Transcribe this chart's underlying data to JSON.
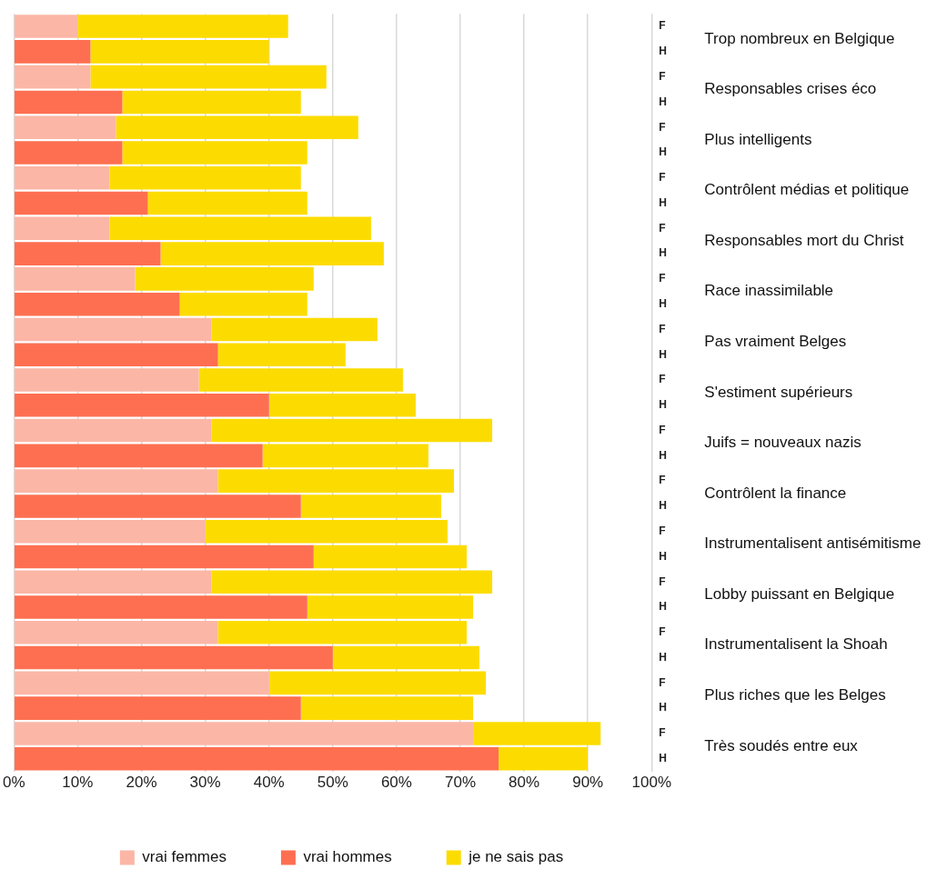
{
  "chart_data": {
    "type": "bar",
    "orientation": "horizontal",
    "stacked": true,
    "categories": [
      "F",
      "H",
      "F",
      "H",
      "F",
      "H",
      "F",
      "H",
      "F",
      "H",
      "F",
      "H",
      "F",
      "H",
      "F",
      "H",
      "F",
      "H",
      "F",
      "H",
      "F",
      "H",
      "F",
      "H",
      "F",
      "H",
      "F",
      "H",
      "F",
      "H"
    ],
    "y2_categories": [
      "Trop nombreux en Belgique",
      null,
      "Responsables crises éco",
      null,
      "Plus intelligents",
      null,
      "Contrôlent médias et politique",
      null,
      "Responsables mort du Christ",
      null,
      "Race inassimilable",
      null,
      "Pas vraiment Belges",
      null,
      "S'estiment supérieurs",
      null,
      "Juifs = nouveaux nazis",
      null,
      "Contrôlent la finance",
      null,
      "Instrumentalisent antisémitisme",
      null,
      "Lobby puissant en Belgique",
      null,
      "Instrumentalisent la Shoah",
      null,
      "Plus riches que les Belges",
      null,
      "Très soudés entre eux",
      null
    ],
    "series": [
      {
        "name": "vrai femmes",
        "color": "#fbb6a6",
        "values": [
          10,
          null,
          12,
          null,
          16,
          null,
          15,
          null,
          15,
          null,
          19,
          null,
          31,
          null,
          29,
          null,
          31,
          null,
          32,
          null,
          30,
          null,
          31,
          null,
          32,
          null,
          40,
          null,
          72,
          null
        ]
      },
      {
        "name": "vrai hommes",
        "color": "#fe6f51",
        "values": [
          null,
          12,
          null,
          17,
          null,
          17,
          null,
          21,
          null,
          23,
          null,
          26,
          null,
          32,
          null,
          40,
          null,
          39,
          null,
          45,
          null,
          47,
          null,
          46,
          null,
          50,
          null,
          45,
          null,
          76
        ]
      },
      {
        "name": "je ne sais pas",
        "color": "#fcdc00",
        "values": [
          33,
          28,
          37,
          28,
          38,
          29,
          30,
          25,
          41,
          35,
          28,
          20,
          26,
          20,
          32,
          23,
          44,
          26,
          37,
          22,
          38,
          24,
          44,
          26,
          39,
          23,
          34,
          27,
          20,
          14
        ]
      }
    ],
    "xlim": [
      0,
      100
    ],
    "xticks": [
      {
        "value": 0,
        "label": "0%"
      },
      {
        "value": 10,
        "label": "10%"
      },
      {
        "value": 20,
        "label": "20%"
      },
      {
        "value": 30,
        "label": "30%"
      },
      {
        "value": 40,
        "label": "40%"
      },
      {
        "value": 50,
        "label": "50%"
      },
      {
        "value": 60,
        "label": "60%"
      },
      {
        "value": 70,
        "label": "70%"
      },
      {
        "value": 80,
        "label": "80%"
      },
      {
        "value": 90,
        "label": "90%"
      },
      {
        "value": 100,
        "label": "100%"
      }
    ],
    "grid": "x",
    "legend": "bottom"
  }
}
